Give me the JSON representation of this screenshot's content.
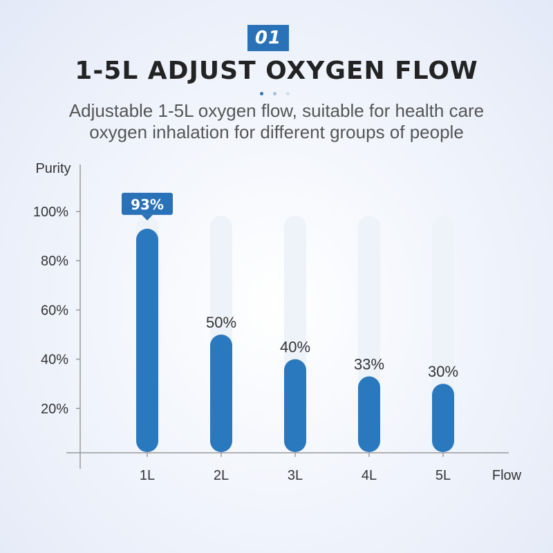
{
  "header": {
    "badge": "01",
    "title": "1-5L ADJUST OXYGEN FLOW",
    "subtitle_lines": [
      "Adjustable 1-5L oxygen flow, suitable for health care",
      "oxygen inhalation for different groups of people"
    ]
  },
  "colors": {
    "bar": "#2a78be",
    "track": "#eef2f9",
    "axis": "#9a9a9a",
    "badge": "#2a72b8",
    "dots": [
      "#2a72b8",
      "#9fc0e0",
      "#cfe0f0"
    ]
  },
  "chart_data": {
    "type": "bar",
    "title": "",
    "xlabel": "Flow",
    "ylabel": "Purity",
    "categories": [
      "1L",
      "2L",
      "3L",
      "4L",
      "5L"
    ],
    "values": [
      93,
      50,
      40,
      33,
      30
    ],
    "data_labels": [
      "93%",
      "50%",
      "40%",
      "33%",
      "30%"
    ],
    "yticks": [
      20,
      40,
      60,
      80,
      100
    ],
    "ytick_labels": [
      "20%",
      "40%",
      "60%",
      "80%",
      "100%"
    ],
    "ylim": [
      0,
      100
    ],
    "highlight_index": 0,
    "grid": false,
    "legend": "none"
  }
}
